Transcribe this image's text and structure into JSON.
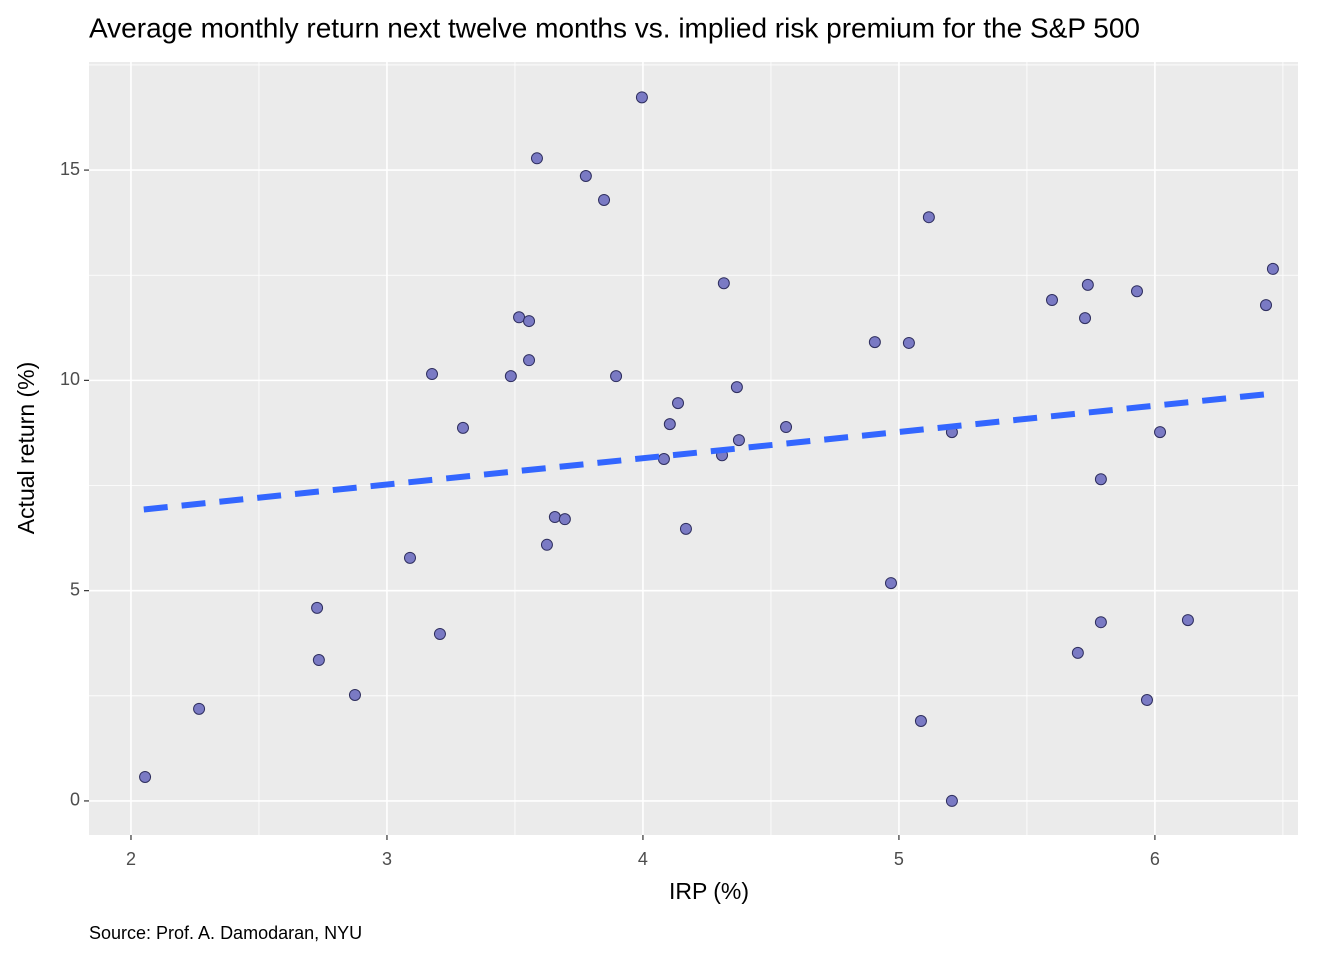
{
  "chart_data": {
    "type": "scatter",
    "title": "Average monthly return next twelve months vs. implied risk premium for the S&P 500",
    "x_label": "IRP (%)",
    "y_label": "Actual return (%)",
    "caption": "Source: Prof. A. Damodaran, NYU",
    "xlim": [
      1.836,
      6.559
    ],
    "ylim": [
      -0.81,
      17.57
    ],
    "xticks": [
      2,
      3,
      4,
      5,
      6
    ],
    "yticks": [
      0,
      5,
      10,
      15
    ],
    "xminor": [
      2.5,
      3.5,
      4.5,
      5.5,
      6.5
    ],
    "yminor": [
      2.5,
      7.5,
      12.5,
      17.5
    ],
    "grid": true,
    "color": "#7a7ac4",
    "x": [
      2.055,
      2.266,
      2.727,
      2.734,
      2.875,
      3.09,
      3.176,
      3.207,
      3.297,
      3.484,
      3.516,
      3.555,
      3.555,
      3.586,
      3.625,
      3.656,
      3.695,
      3.777,
      3.848,
      3.895,
      3.996,
      4.082,
      4.105,
      4.137,
      4.168,
      4.309,
      4.316,
      4.367,
      4.375,
      4.559,
      4.906,
      4.969,
      5.039,
      5.086,
      5.117,
      5.207,
      5.207,
      5.598,
      5.699,
      5.727,
      5.738,
      5.789,
      5.789,
      5.93,
      5.969,
      6.02,
      6.129,
      6.434,
      6.461
    ],
    "values": [
      0.57,
      2.19,
      4.59,
      3.35,
      2.52,
      5.78,
      10.15,
      3.97,
      8.87,
      10.1,
      11.5,
      11.41,
      10.48,
      15.28,
      6.09,
      6.75,
      6.7,
      14.86,
      14.29,
      10.1,
      16.73,
      8.13,
      8.96,
      9.46,
      6.47,
      8.22,
      12.31,
      9.84,
      8.58,
      8.89,
      10.91,
      5.18,
      10.89,
      1.9,
      13.88,
      8.77,
      0.0,
      11.91,
      3.52,
      11.48,
      12.27,
      7.65,
      4.25,
      12.12,
      2.4,
      8.77,
      4.3,
      11.79,
      12.65
    ],
    "trend": {
      "color": "#3366ff",
      "x": [
        2.05,
        6.45
      ],
      "values": [
        6.93,
        9.68
      ]
    }
  }
}
